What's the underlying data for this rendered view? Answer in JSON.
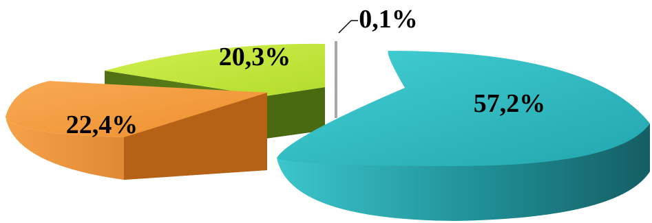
{
  "chart_data": {
    "type": "pie",
    "style": "3d-exploded",
    "legend": "none",
    "slices": [
      {
        "label": "57,2%",
        "value": 57.2,
        "color": "#2fbfc5"
      },
      {
        "label": "22,4%",
        "value": 22.4,
        "color": "#f39a3c"
      },
      {
        "label": "20,3%",
        "value": 20.3,
        "color": "#c2e83a"
      },
      {
        "label": "0,1%",
        "value": 0.1,
        "color": "#c8c8c8"
      }
    ]
  }
}
